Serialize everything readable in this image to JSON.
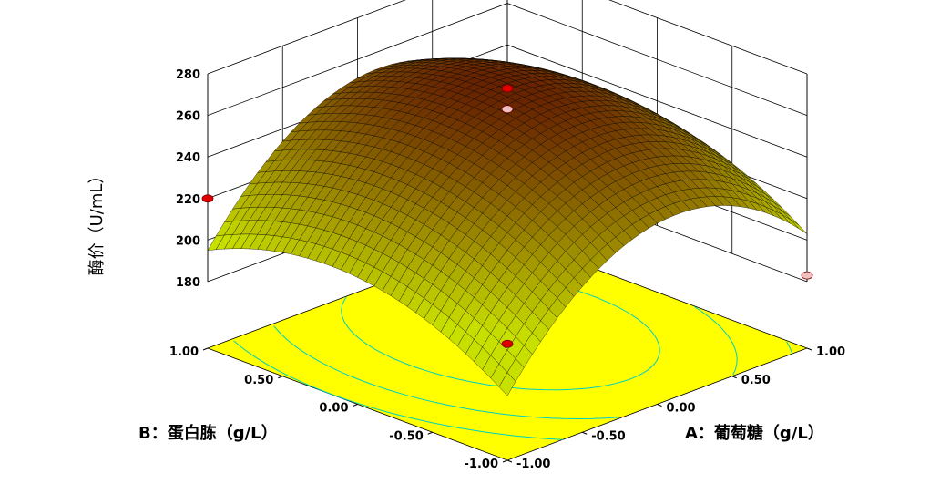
{
  "chart_data": {
    "type": "surface3d",
    "zlabel": "酶价（U/mL）",
    "xlabel": "A：葡萄糖（g/L）",
    "ylabel": "B：蛋白胨（g/L）",
    "x_ticks": [
      "-1.00",
      "-0.50",
      "0.00",
      "0.50",
      "1.00"
    ],
    "y_ticks": [
      "-1.00",
      "-0.50",
      "0.00",
      "0.50",
      "1.00"
    ],
    "z_ticks": [
      "180",
      "200",
      "220",
      "240",
      "260",
      "280"
    ],
    "xlim": [
      -1,
      1
    ],
    "ylim": [
      -1,
      1
    ],
    "zlim": [
      180,
      280
    ],
    "model": {
      "intercept": 265,
      "a": 12,
      "b": 8,
      "aa": -44,
      "bb": -22,
      "ab": 0
    },
    "design_points": [
      {
        "a": 0,
        "b": 0,
        "value": 273
      },
      {
        "a": 0,
        "b": 0,
        "value": 263
      },
      {
        "a": -1,
        "b": -1,
        "value": 204
      },
      {
        "a": 1,
        "b": -1,
        "value": 183
      },
      {
        "a": -1,
        "b": 1,
        "value": 220
      }
    ],
    "colors": {
      "floor": "#ffff00",
      "surface_low": "#c8e000",
      "surface_high": "#5a0a00",
      "contour": "#ff8a5a",
      "contour_low": "#00d0c0",
      "point_above": "#e00000",
      "point_below": "#f0c0c0",
      "grid": "#000000"
    }
  }
}
